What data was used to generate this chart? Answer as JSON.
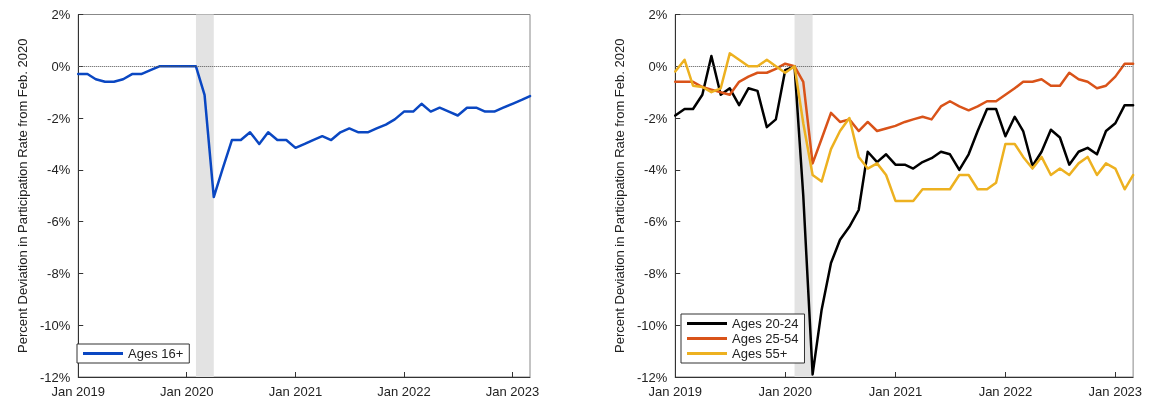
{
  "chart_data": [
    {
      "type": "line",
      "ylabel": "Percent Deviation in Participation Rate from Feb. 2020",
      "x": [
        "2019-01",
        "2019-02",
        "2019-03",
        "2019-04",
        "2019-05",
        "2019-06",
        "2019-07",
        "2019-08",
        "2019-09",
        "2019-10",
        "2019-11",
        "2019-12",
        "2020-01",
        "2020-02",
        "2020-03",
        "2020-04",
        "2020-05",
        "2020-06",
        "2020-07",
        "2020-08",
        "2020-09",
        "2020-10",
        "2020-11",
        "2020-12",
        "2021-01",
        "2021-02",
        "2021-03",
        "2021-04",
        "2021-05",
        "2021-06",
        "2021-07",
        "2021-08",
        "2021-09",
        "2021-10",
        "2021-11",
        "2021-12",
        "2022-01",
        "2022-02",
        "2022-03",
        "2022-04",
        "2022-05",
        "2022-06",
        "2022-07",
        "2022-08",
        "2022-09",
        "2022-10",
        "2022-11",
        "2022-12",
        "2023-01",
        "2023-02",
        "2023-03"
      ],
      "series": [
        {
          "name": "Ages 16+",
          "color": "#0a47c2",
          "values": [
            -0.3,
            -0.3,
            -0.5,
            -0.6,
            -0.6,
            -0.5,
            -0.3,
            -0.3,
            -0.15,
            0,
            0,
            0,
            0,
            0,
            -1.1,
            -5.05,
            -3.95,
            -2.85,
            -2.85,
            -2.55,
            -3.0,
            -2.55,
            -2.85,
            -2.85,
            -3.15,
            -3.0,
            -2.85,
            -2.7,
            -2.85,
            -2.55,
            -2.4,
            -2.55,
            -2.55,
            -2.4,
            -2.25,
            -2.05,
            -1.75,
            -1.75,
            -1.45,
            -1.75,
            -1.6,
            -1.75,
            -1.9,
            -1.6,
            -1.6,
            -1.75,
            -1.75,
            -1.6,
            -1.45,
            -1.3,
            -1.15
          ]
        }
      ],
      "xlim": [
        "2019-01",
        "2023-03"
      ],
      "xticks": [
        {
          "value": "2019-01",
          "label": "Jan 2019"
        },
        {
          "value": "2020-01",
          "label": "Jan 2020"
        },
        {
          "value": "2021-01",
          "label": "Jan 2021"
        },
        {
          "value": "2022-01",
          "label": "Jan 2022"
        },
        {
          "value": "2023-01",
          "label": "Jan 2023"
        }
      ],
      "ylim": [
        -12,
        2
      ],
      "yticks": [
        {
          "value": -12,
          "label": "-12%"
        },
        {
          "value": -10,
          "label": "-10%"
        },
        {
          "value": -8,
          "label": "-8%"
        },
        {
          "value": -6,
          "label": "-6%"
        },
        {
          "value": -4,
          "label": "-4%"
        },
        {
          "value": -2,
          "label": "-2%"
        },
        {
          "value": 0,
          "label": "0%"
        },
        {
          "value": 2,
          "label": "2%"
        }
      ],
      "ref_lines": [
        {
          "axis": "y",
          "value": 0,
          "color": "#555555",
          "line_style": "dotted"
        }
      ],
      "bands": [
        {
          "axis": "x",
          "from": "2020-02",
          "to": "2020-04",
          "color": "#e3e3e3"
        }
      ],
      "legend": "bottom left",
      "grid": false,
      "marker": "none",
      "line_style": "solid"
    },
    {
      "type": "line",
      "ylabel": "Percent Deviation in Participation Rate from Feb. 2020",
      "x": [
        "2019-01",
        "2019-02",
        "2019-03",
        "2019-04",
        "2019-05",
        "2019-06",
        "2019-07",
        "2019-08",
        "2019-09",
        "2019-10",
        "2019-11",
        "2019-12",
        "2020-01",
        "2020-02",
        "2020-03",
        "2020-04",
        "2020-05",
        "2020-06",
        "2020-07",
        "2020-08",
        "2020-09",
        "2020-10",
        "2020-11",
        "2020-12",
        "2021-01",
        "2021-02",
        "2021-03",
        "2021-04",
        "2021-05",
        "2021-06",
        "2021-07",
        "2021-08",
        "2021-09",
        "2021-10",
        "2021-11",
        "2021-12",
        "2022-01",
        "2022-02",
        "2022-03",
        "2022-04",
        "2022-05",
        "2022-06",
        "2022-07",
        "2022-08",
        "2022-09",
        "2022-10",
        "2022-11",
        "2022-12",
        "2023-01",
        "2023-02",
        "2023-03"
      ],
      "series": [
        {
          "name": "Ages 20-24",
          "color": "#000000",
          "values": [
            -1.9,
            -1.65,
            -1.65,
            -1.1,
            0.4,
            -1.1,
            -0.85,
            -1.5,
            -0.85,
            -0.95,
            -2.35,
            -2.05,
            -0.15,
            0,
            -5.0,
            -11.9,
            -9.4,
            -7.6,
            -6.7,
            -6.2,
            -5.55,
            -3.3,
            -3.7,
            -3.4,
            -3.8,
            -3.8,
            -3.95,
            -3.7,
            -3.55,
            -3.3,
            -3.4,
            -4.0,
            -3.4,
            -2.5,
            -1.65,
            -1.65,
            -2.7,
            -1.95,
            -2.5,
            -3.85,
            -3.3,
            -2.45,
            -2.75,
            -3.8,
            -3.3,
            -3.15,
            -3.4,
            -2.5,
            -2.2,
            -1.5,
            -1.5
          ]
        },
        {
          "name": "Ages 25-54",
          "color": "#d95319",
          "values": [
            -0.6,
            -0.6,
            -0.6,
            -0.8,
            -0.9,
            -1.0,
            -1.1,
            -0.6,
            -0.4,
            -0.25,
            -0.25,
            -0.1,
            0.1,
            0,
            -0.6,
            -3.75,
            -2.8,
            -1.8,
            -2.15,
            -2.05,
            -2.5,
            -2.15,
            -2.5,
            -2.4,
            -2.3,
            -2.15,
            -2.05,
            -1.95,
            -2.05,
            -1.55,
            -1.35,
            -1.55,
            -1.7,
            -1.55,
            -1.35,
            -1.35,
            -1.1,
            -0.85,
            -0.6,
            -0.6,
            -0.5,
            -0.75,
            -0.75,
            -0.25,
            -0.5,
            -0.6,
            -0.85,
            -0.75,
            -0.4,
            0.1,
            0.1
          ]
        },
        {
          "name": "Ages 55+",
          "color": "#edb120",
          "values": [
            -0.2,
            0.25,
            -0.75,
            -0.8,
            -1.0,
            -0.85,
            0.5,
            0.25,
            0,
            0,
            0.25,
            0,
            -0.25,
            0,
            -2.2,
            -4.2,
            -4.45,
            -3.2,
            -2.5,
            -2.0,
            -3.5,
            -3.95,
            -3.75,
            -4.2,
            -5.2,
            -5.2,
            -5.2,
            -4.75,
            -4.75,
            -4.75,
            -4.75,
            -4.2,
            -4.2,
            -4.75,
            -4.75,
            -4.5,
            -3.0,
            -3.0,
            -3.5,
            -3.95,
            -3.5,
            -4.2,
            -3.95,
            -4.2,
            -3.75,
            -3.5,
            -4.2,
            -3.75,
            -3.95,
            -4.75,
            -4.2
          ]
        }
      ],
      "xlim": [
        "2019-01",
        "2023-03"
      ],
      "xticks": [
        {
          "value": "2019-01",
          "label": "Jan 2019"
        },
        {
          "value": "2020-01",
          "label": "Jan 2020"
        },
        {
          "value": "2021-01",
          "label": "Jan 2021"
        },
        {
          "value": "2022-01",
          "label": "Jan 2022"
        },
        {
          "value": "2023-01",
          "label": "Jan 2023"
        }
      ],
      "ylim": [
        -12,
        2
      ],
      "yticks": [
        {
          "value": -12,
          "label": "-12%"
        },
        {
          "value": -10,
          "label": "-10%"
        },
        {
          "value": -8,
          "label": "-8%"
        },
        {
          "value": -6,
          "label": "-6%"
        },
        {
          "value": -4,
          "label": "-4%"
        },
        {
          "value": -2,
          "label": "-2%"
        },
        {
          "value": 0,
          "label": "0%"
        },
        {
          "value": 2,
          "label": "2%"
        }
      ],
      "ref_lines": [
        {
          "axis": "y",
          "value": 0,
          "color": "#555555",
          "line_style": "dotted"
        }
      ],
      "bands": [
        {
          "axis": "x",
          "from": "2020-02",
          "to": "2020-04",
          "color": "#e3e3e3"
        }
      ],
      "legend": "bottom left",
      "grid": false,
      "marker": "none",
      "line_style": "solid"
    }
  ]
}
